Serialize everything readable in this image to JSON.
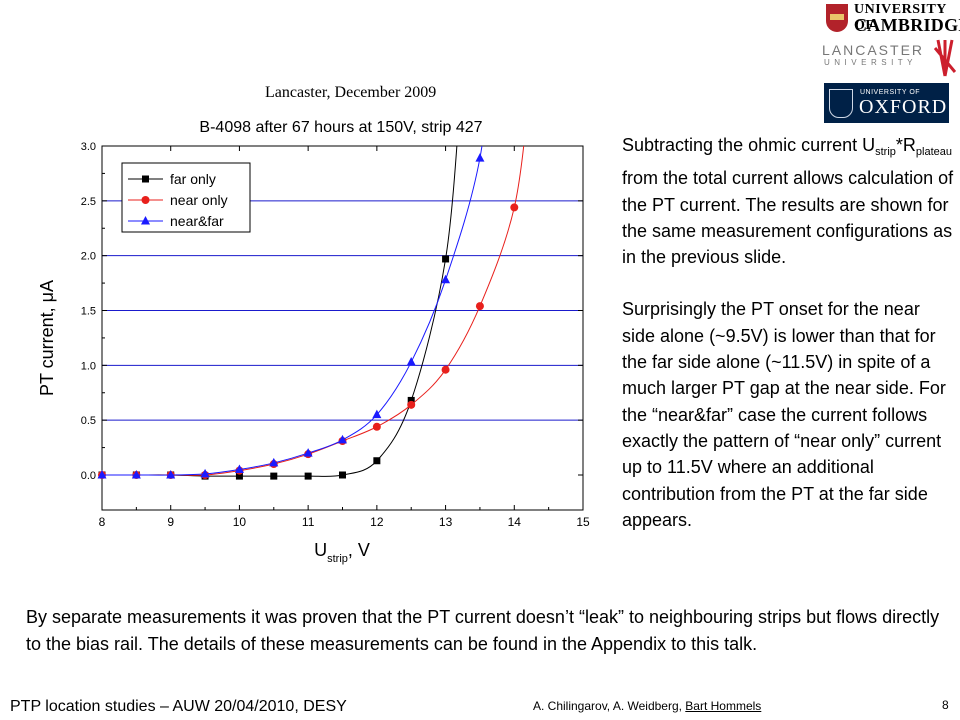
{
  "header_note": "Lancaster, December 2009",
  "logos": {
    "cambridge_line1": "UNIVERSITY OF",
    "cambridge_line2": "CAMBRIDGE",
    "lancaster_name": "LANCASTER",
    "lancaster_sub": "UNIVERSITY",
    "oxford_line1": "UNIVERSITY OF",
    "oxford_line2": "OXFORD"
  },
  "chart_data": {
    "type": "line",
    "title": "B-4098 after 67 hours at 150V, strip 427",
    "xlabel_main": "U",
    "xlabel_sub": "strip",
    "xlabel_unit": ", V",
    "ylabel": "PT current, μA",
    "xlim": [
      8,
      15
    ],
    "ylim": [
      -0.2,
      3.0
    ],
    "xticks": [
      "8",
      "9",
      "10",
      "11",
      "12",
      "13",
      "14",
      "15"
    ],
    "yticks": [
      "0.0",
      "0.5",
      "1.0",
      "1.5",
      "2.0",
      "2.5",
      "3.0"
    ],
    "grid": "horizontal",
    "legend_position": "top-left",
    "series": [
      {
        "name": "far only",
        "color": "#000000",
        "marker": "square",
        "x": [
          8,
          8.5,
          9,
          9.5,
          10,
          10.5,
          11,
          11.5,
          12,
          12.5,
          13
        ],
        "y": [
          0.0,
          0.0,
          0.0,
          -0.01,
          -0.01,
          -0.01,
          -0.01,
          0.0,
          0.13,
          0.68,
          1.97
        ]
      },
      {
        "name": "near only",
        "color": "#e8201c",
        "marker": "circle",
        "x": [
          8,
          8.5,
          9,
          9.5,
          10,
          10.5,
          11,
          11.5,
          12,
          12.5,
          13,
          13.5,
          14
        ],
        "y": [
          0.0,
          0.0,
          0.0,
          0.0,
          0.04,
          0.1,
          0.19,
          0.31,
          0.44,
          0.64,
          0.96,
          1.54,
          2.44
        ]
      },
      {
        "name": "near&far",
        "color": "#1a1aff",
        "marker": "triangle",
        "x": [
          8,
          8.5,
          9,
          9.5,
          10,
          10.5,
          11,
          11.5,
          12,
          12.5,
          13,
          13.5
        ],
        "y": [
          0.0,
          0.0,
          0.0,
          0.01,
          0.05,
          0.11,
          0.2,
          0.32,
          0.55,
          1.03,
          1.78,
          2.89
        ]
      }
    ]
  },
  "right_text": {
    "p1_a": "Subtracting the ohmic current U",
    "p1_sub1": "strip",
    "p1_b": "*R",
    "p1_sub2": "plateau",
    "p1_c": " from the total current allows calculation of the PT current. The results are shown for the same measurement configurations as in the previous slide.",
    "p2": "Surprisingly the PT onset for the near side alone (~9.5V) is lower than that for the far side alone (~11.5V) in spite of a much larger PT gap at the near side. For the “near&far” case the current follows exactly the pattern of “near only” current up to 11.5V where an additional contribution from the PT at the far side appears."
  },
  "bottom_text": "By separate measurements it was proven that the PT current doesn’t “leak” to neighbouring strips but flows directly to the bias rail. The details of these measurements can be found in the Appendix to this talk.",
  "footer": {
    "left": "PTP location studies – AUW 20/04/2010, DESY",
    "authors": "A. Chilingarov, A. Weidberg, ",
    "underlined_author": "Bart Hommels",
    "slide_number": "8"
  }
}
